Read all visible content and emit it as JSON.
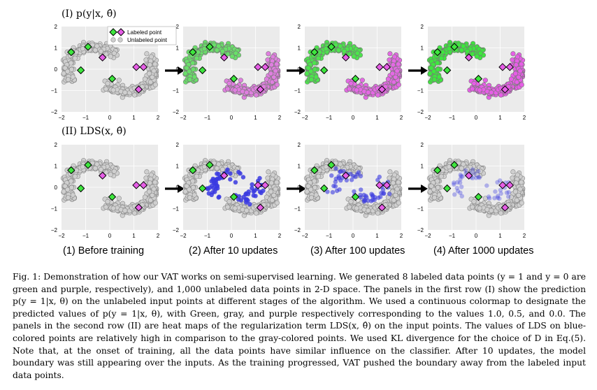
{
  "rows": [
    {
      "label": "(I) p(y|x, θ̂)",
      "type": "prediction"
    },
    {
      "label": "(II) LDS(x, θ̂)",
      "type": "lds"
    }
  ],
  "legend": {
    "labeled": "Labeled point",
    "unlabeled": "Unlabeled point"
  },
  "axis_ticks": {
    "x": [
      "−2",
      "−1",
      "0",
      "1",
      "2"
    ],
    "y": [
      "2",
      "1",
      "0",
      "−1",
      "−2"
    ]
  },
  "columns": [
    {
      "caption": "(1) Before training",
      "stage": 0
    },
    {
      "caption": "(2) After 10 updates",
      "stage": 10
    },
    {
      "caption": "(3) After 100 updates",
      "stage": 100
    },
    {
      "caption": "(4) After 1000 updates",
      "stage": 1000
    }
  ],
  "colors": {
    "green": "#3ee63e",
    "purple": "#e65ee6",
    "gray": "#cfcfcf",
    "blue": "#3a3ae0",
    "panel_bg": "#ebebeb"
  },
  "labeled_points": [
    {
      "x": -1.6,
      "y": 0.8,
      "class": "green"
    },
    {
      "x": -0.9,
      "y": 1.05,
      "class": "green"
    },
    {
      "x": -1.2,
      "y": -0.05,
      "class": "green"
    },
    {
      "x": 0.1,
      "y": -0.45,
      "class": "green"
    },
    {
      "x": -0.3,
      "y": 0.55,
      "class": "purple"
    },
    {
      "x": 1.4,
      "y": 0.1,
      "class": "purple"
    },
    {
      "x": 1.1,
      "y": 0.1,
      "class": "purple"
    },
    {
      "x": 1.2,
      "y": -0.95,
      "class": "purple"
    }
  ],
  "caption": {
    "fig": "Fig. 1:",
    "text": "Demonstration of how our VAT works on semi-supervised learning. We generated 8 labeled data points (y = 1 and y = 0 are green and purple, respectively), and 1,000 unlabeled data points in 2-D space. The panels in the first row (I) show the prediction p(y = 1|x, θ) on the unlabeled input points at different stages of the algorithm. We used a continuous colormap to designate the predicted values of p(y = 1|x, θ), with Green, gray, and purple respectively corresponding to the values 1.0, 0.5, and 0.0. The panels in the second row (II) are heat maps of the regularization term LDS(x, θ̂) on the input points. The values of LDS on blue-colored points are relatively high in comparison to the gray-colored points. We used KL divergence for the choice of D in Eq.(5). Note that, at the onset of training, all the data points have similar influence on the classifier. After 10 updates, the model boundary was still appearing over the inputs. As the training progressed, VAT pushed the boundary away from the labeled input data points."
  }
}
